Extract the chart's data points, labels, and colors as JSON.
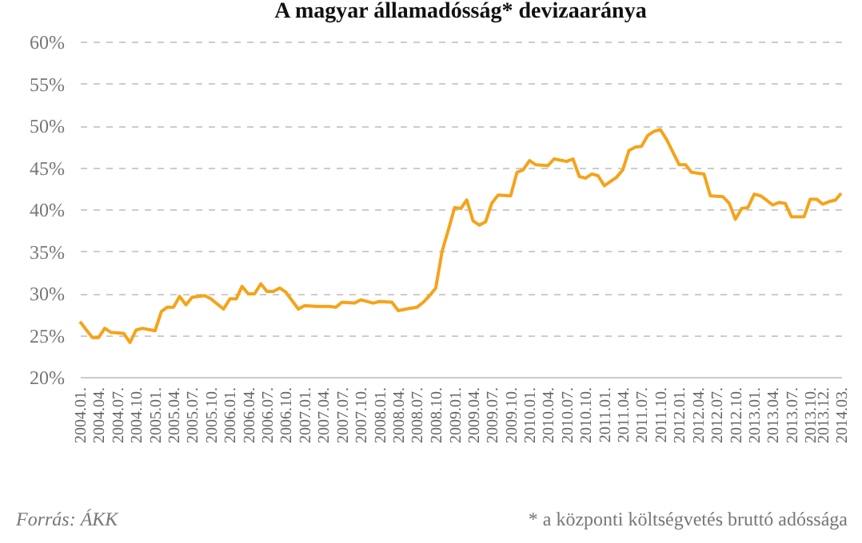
{
  "chart_data": {
    "type": "line",
    "title": "A magyar államadósság* devizaaránya",
    "annotations": [
      "Forrás: ÁKK",
      "* a központi költségvetés bruttó adóssága"
    ],
    "series": [
      {
        "color": "#f5a31a",
        "x": [
          "2004-01",
          "2004-03",
          "2004-04",
          "2004-05",
          "2004-06",
          "2004-08",
          "2004-09",
          "2004-10",
          "2004-11",
          "2005-01",
          "2005-02",
          "2005-03",
          "2005-04",
          "2005-05",
          "2005-06",
          "2005-07",
          "2005-09",
          "2005-10",
          "2005-12",
          "2006-01",
          "2006-02",
          "2006-03",
          "2006-04",
          "2006-05",
          "2006-06",
          "2006-07",
          "2006-08",
          "2006-09",
          "2006-10",
          "2006-12",
          "2007-01",
          "2007-03",
          "2007-05",
          "2007-06",
          "2007-07",
          "2007-09",
          "2007-10",
          "2007-12",
          "2008-01",
          "2008-03",
          "2008-04",
          "2008-06",
          "2008-07",
          "2008-08",
          "2008-09",
          "2008-10",
          "2008-11",
          "2008-12",
          "2009-01",
          "2009-02",
          "2009-03",
          "2009-04",
          "2009-05",
          "2009-06",
          "2009-07",
          "2009-08",
          "2009-10",
          "2009-11",
          "2009-12",
          "2010-01",
          "2010-02",
          "2010-04",
          "2010-05",
          "2010-07",
          "2010-08",
          "2010-09",
          "2010-10",
          "2010-11",
          "2010-12",
          "2011-01",
          "2011-03",
          "2011-04",
          "2011-05",
          "2011-06",
          "2011-07",
          "2011-08",
          "2011-09",
          "2011-10",
          "2011-11",
          "2012-01",
          "2012-02",
          "2012-03",
          "2012-05",
          "2012-06",
          "2012-08",
          "2012-09",
          "2012-10",
          "2012-11",
          "2012-12",
          "2013-01",
          "2013-02",
          "2013-03",
          "2013-04",
          "2013-05",
          "2013-06",
          "2013-07",
          "2013-09",
          "2013-10",
          "2013-11",
          "2013-12",
          "2014-01",
          "2014-02",
          "2014-03"
        ],
        "values": [
          26.6,
          24.7,
          24.7,
          25.8,
          25.3,
          25.2,
          24.1,
          25.6,
          25.8,
          25.5,
          27.8,
          28.3,
          28.3,
          29.6,
          28.6,
          29.5,
          29.7,
          29.3,
          28.1,
          29.3,
          29.3,
          30.8,
          29.9,
          29.9,
          31.1,
          30.2,
          30.2,
          30.6,
          30.1,
          28.1,
          28.5,
          28.4,
          28.4,
          28.3,
          28.9,
          28.8,
          29.2,
          28.8,
          29.0,
          28.9,
          27.9,
          28.2,
          28.3,
          28.9,
          29.7,
          30.6,
          35.0,
          37.5,
          40.2,
          40.1,
          41.1,
          38.6,
          38.1,
          38.5,
          40.7,
          41.7,
          41.6,
          44.4,
          44.7,
          45.8,
          45.3,
          45.2,
          46.0,
          45.7,
          46.0,
          43.9,
          43.7,
          44.2,
          44.0,
          42.8,
          43.8,
          44.7,
          47.0,
          47.4,
          47.5,
          48.8,
          49.3,
          49.5,
          48.3,
          45.3,
          45.3,
          44.4,
          44.2,
          41.6,
          41.5,
          40.7,
          38.8,
          40.1,
          40.2,
          41.8,
          41.6,
          41.1,
          40.5,
          40.8,
          40.7,
          39.1,
          39.1,
          41.2,
          41.2,
          40.6,
          40.9,
          41.1,
          41.9
        ]
      }
    ],
    "xlim": [
      "2004-01",
      "2014-03"
    ],
    "xticks": [
      {
        "value": "2004-01",
        "label": "2004.01."
      },
      {
        "value": "2004-04",
        "label": "2004.04."
      },
      {
        "value": "2004-07",
        "label": "2004.07."
      },
      {
        "value": "2004-10",
        "label": "2004.10."
      },
      {
        "value": "2005-01",
        "label": "2005.01."
      },
      {
        "value": "2005-04",
        "label": "2005.04."
      },
      {
        "value": "2005-07",
        "label": "2005.07."
      },
      {
        "value": "2005-10",
        "label": "2005.10."
      },
      {
        "value": "2006-01",
        "label": "2006.01."
      },
      {
        "value": "2006-04",
        "label": "2006.04."
      },
      {
        "value": "2006-07",
        "label": "2006.07."
      },
      {
        "value": "2006-10",
        "label": "2006.10."
      },
      {
        "value": "2007-01",
        "label": "2007.01."
      },
      {
        "value": "2007-04",
        "label": "2007.04."
      },
      {
        "value": "2007-07",
        "label": "2007.07."
      },
      {
        "value": "2007-10",
        "label": "2007.10."
      },
      {
        "value": "2008-01",
        "label": "2008.01."
      },
      {
        "value": "2008-04",
        "label": "2008.04."
      },
      {
        "value": "2008-07",
        "label": "2008.07."
      },
      {
        "value": "2008-10",
        "label": "2008.10."
      },
      {
        "value": "2009-01",
        "label": "2009.01."
      },
      {
        "value": "2009-04",
        "label": "2009.04."
      },
      {
        "value": "2009-07",
        "label": "2009.07."
      },
      {
        "value": "2009-10",
        "label": "2009.10."
      },
      {
        "value": "2010-01",
        "label": "2010.01."
      },
      {
        "value": "2010-04",
        "label": "2010.04."
      },
      {
        "value": "2010-07",
        "label": "2010.07."
      },
      {
        "value": "2010-10",
        "label": "2010.10."
      },
      {
        "value": "2011-01",
        "label": "2011.01."
      },
      {
        "value": "2011-04",
        "label": "2011.04."
      },
      {
        "value": "2011-07",
        "label": "2011.07."
      },
      {
        "value": "2011-10",
        "label": "2011.10."
      },
      {
        "value": "2012-01",
        "label": "2012.01."
      },
      {
        "value": "2012-04",
        "label": "2012.04."
      },
      {
        "value": "2012-07",
        "label": "2012.07."
      },
      {
        "value": "2012-10",
        "label": "2012.10."
      },
      {
        "value": "2013-01",
        "label": "2013.01."
      },
      {
        "value": "2013-04",
        "label": "2013.04."
      },
      {
        "value": "2013-07",
        "label": "2013.07."
      },
      {
        "value": "2013-10",
        "label": "2013.10."
      },
      {
        "value": "2013-12",
        "label": "2013.12."
      },
      {
        "value": "2014-03",
        "label": "2014.03."
      }
    ],
    "ylim": [
      20,
      60
    ],
    "yticks": [
      {
        "value": 20,
        "label": "20%"
      },
      {
        "value": 25,
        "label": "25%"
      },
      {
        "value": 30,
        "label": "30%"
      },
      {
        "value": 35,
        "label": "35%"
      },
      {
        "value": 40,
        "label": "40%"
      },
      {
        "value": 45,
        "label": "45%"
      },
      {
        "value": 50,
        "label": "50%"
      },
      {
        "value": 55,
        "label": "55%"
      },
      {
        "value": 60,
        "label": "60%"
      }
    ],
    "grid": "y",
    "marker": "none",
    "line_style": "solid"
  }
}
